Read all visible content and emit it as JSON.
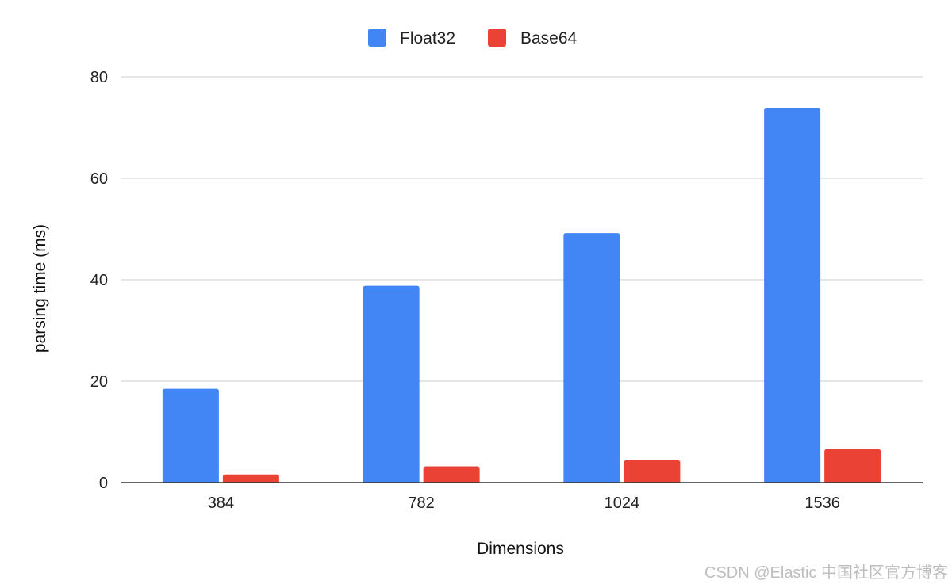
{
  "chart_data": {
    "type": "bar",
    "categories": [
      "384",
      "782",
      "1024",
      "1536"
    ],
    "series": [
      {
        "name": "Float32",
        "color": "#4285f4",
        "values": [
          18.5,
          38.8,
          49.2,
          73.9
        ]
      },
      {
        "name": "Base64",
        "color": "#ea4335",
        "values": [
          1.6,
          3.2,
          4.4,
          6.6
        ]
      }
    ],
    "title": "",
    "xlabel": "Dimensions",
    "ylabel": "parsing time (ms)",
    "ylim": [
      0,
      80
    ],
    "yticks": [
      "0",
      "20",
      "40",
      "60",
      "80"
    ],
    "grid": true,
    "legend_position": "top-center"
  },
  "watermark": "CSDN @Elastic 中国社区官方博客"
}
